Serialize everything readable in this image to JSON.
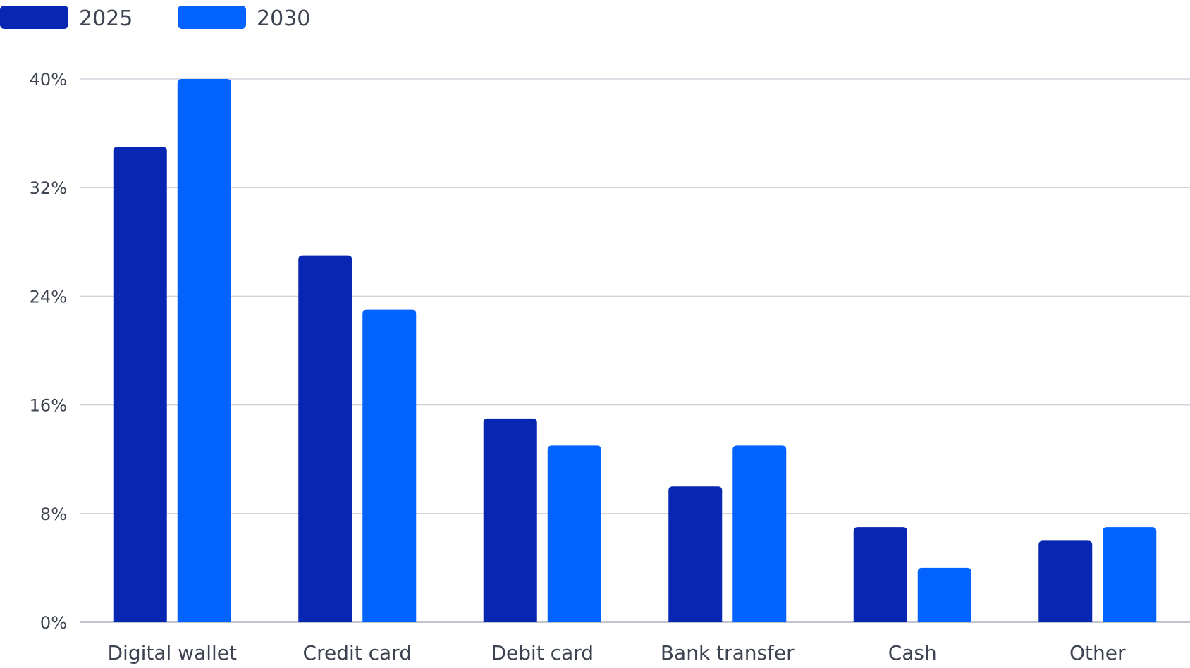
{
  "chart_data": {
    "type": "bar",
    "categories": [
      "Digital wallet",
      "Credit card",
      "Debit card",
      "Bank transfer",
      "Cash",
      "Other"
    ],
    "series": [
      {
        "name": "2025",
        "color": "#0726b2",
        "values": [
          35,
          27,
          15,
          10,
          7,
          6
        ]
      },
      {
        "name": "2030",
        "color": "#0263ff",
        "values": [
          40,
          23,
          13,
          13,
          4,
          7
        ]
      }
    ],
    "y_ticks": [
      "0%",
      "8%",
      "16%",
      "24%",
      "32%",
      "40%"
    ],
    "y_tick_values": [
      0,
      8,
      16,
      24,
      32,
      40
    ],
    "ylim": [
      0,
      40
    ],
    "ylabel": "",
    "xlabel": "",
    "grid": true,
    "legend_position": "top-left"
  }
}
